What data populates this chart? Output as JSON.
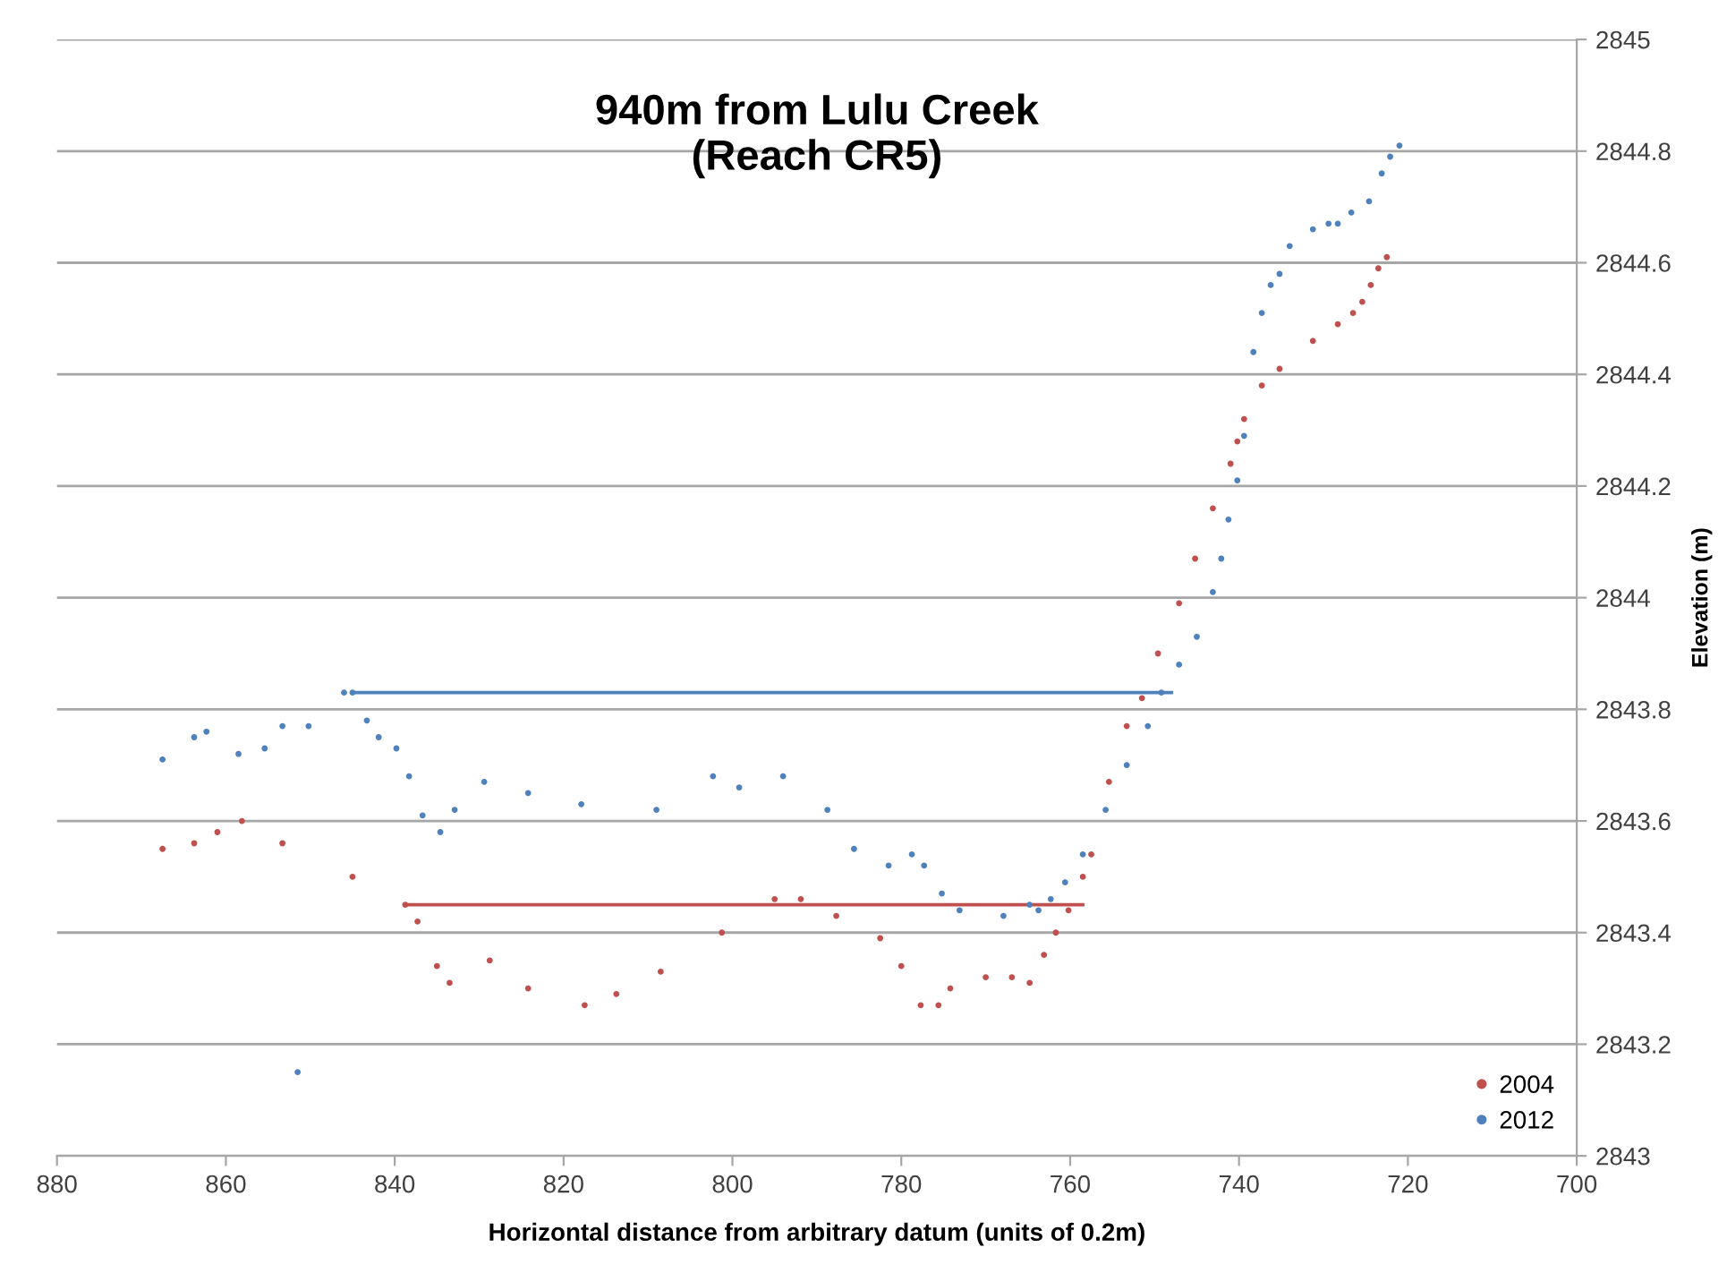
{
  "chart_data": {
    "type": "scatter",
    "title": "940m from Lulu Creek\n(Reach CR5)",
    "xlabel": "Horizontal distance from arbitrary datum (units of 0.2m)",
    "ylabel": "Elevation (m)",
    "xlim": [
      880,
      700
    ],
    "xticks": [
      880,
      860,
      840,
      820,
      800,
      780,
      760,
      740,
      720,
      700
    ],
    "ylim": [
      2843,
      2845
    ],
    "yticks": [
      2843,
      2843.2,
      2843.4,
      2843.6,
      2843.8,
      2844,
      2844.2,
      2844.4,
      2844.6,
      2844.8,
      2845
    ],
    "grid": "y",
    "legend": "bottom right",
    "series": [
      {
        "name": "2004",
        "color": "#c0504d",
        "marker": "circle",
        "x": [
          867.5,
          863.75,
          861,
          858.1,
          853.3,
          845,
          838.75,
          837.3,
          835,
          833.5,
          828.75,
          824.2,
          817.5,
          813.75,
          808.5,
          801.25,
          795,
          791.9,
          787.7,
          782.5,
          780,
          777.7,
          775.6,
          774.2,
          770,
          766.9,
          764.8,
          763.1,
          761.7,
          760.2,
          758.5,
          757.5,
          755.4,
          753.3,
          751.5,
          749.6,
          747.1,
          745.2,
          743.1,
          741,
          740.2,
          739.4,
          737.3,
          735.2,
          731.25,
          728.3,
          726.5,
          725.4,
          724.4,
          723.5,
          722.5
        ],
        "values": [
          2843.55,
          2843.56,
          2843.58,
          2843.6,
          2843.56,
          2843.5,
          2843.45,
          2843.42,
          2843.34,
          2843.31,
          2843.35,
          2843.3,
          2843.27,
          2843.29,
          2843.33,
          2843.4,
          2843.46,
          2843.46,
          2843.43,
          2843.39,
          2843.34,
          2843.27,
          2843.27,
          2843.3,
          2843.32,
          2843.32,
          2843.31,
          2843.36,
          2843.4,
          2843.44,
          2843.5,
          2843.54,
          2843.67,
          2843.77,
          2843.82,
          2843.9,
          2843.99,
          2844.07,
          2844.16,
          2844.24,
          2844.28,
          2844.32,
          2844.38,
          2844.41,
          2844.46,
          2844.49,
          2844.51,
          2844.53,
          2844.56,
          2844.59,
          2844.61
        ]
      },
      {
        "name": "2012",
        "color": "#4f81bd",
        "marker": "circle",
        "x": [
          867.5,
          863.75,
          862.3,
          858.5,
          855.4,
          853.3,
          851.5,
          850.2,
          846,
          845,
          843.3,
          841.9,
          839.8,
          838.3,
          836.7,
          834.6,
          832.9,
          829.4,
          824.2,
          817.9,
          809,
          802.3,
          799.2,
          794,
          788.75,
          785.6,
          781.5,
          778.75,
          777.3,
          775.2,
          773.1,
          767.9,
          764.8,
          763.75,
          762.3,
          760.6,
          758.5,
          755.8,
          753.3,
          750.8,
          749.2,
          747.1,
          745,
          743.1,
          742.1,
          741.25,
          740.2,
          739.4,
          738.3,
          737.3,
          736.25,
          735.2,
          734,
          731.25,
          729.4,
          728.3,
          726.7,
          724.6,
          723.1,
          722.1,
          721
        ],
        "values": [
          2843.71,
          2843.75,
          2843.76,
          2843.72,
          2843.73,
          2843.77,
          2843.15,
          2843.77,
          2843.83,
          2843.83,
          2843.78,
          2843.75,
          2843.73,
          2843.68,
          2843.61,
          2843.58,
          2843.62,
          2843.67,
          2843.65,
          2843.63,
          2843.62,
          2843.68,
          2843.66,
          2843.68,
          2843.62,
          2843.55,
          2843.52,
          2843.54,
          2843.52,
          2843.47,
          2843.44,
          2843.43,
          2843.45,
          2843.44,
          2843.46,
          2843.49,
          2843.54,
          2843.62,
          2843.7,
          2843.77,
          2843.83,
          2843.88,
          2843.93,
          2844.01,
          2844.07,
          2844.14,
          2844.21,
          2844.29,
          2844.44,
          2844.51,
          2844.56,
          2844.58,
          2844.63,
          2844.66,
          2844.67,
          2844.67,
          2844.69,
          2844.71,
          2844.76,
          2844.79,
          2844.81
        ]
      },
      {
        "color": "#c0504d",
        "type": "line",
        "marker": "none",
        "x": [
          838.75,
          758.5
        ],
        "values": [
          2843.45,
          2843.45
        ]
      },
      {
        "color": "#4f81bd",
        "type": "line",
        "marker": "none",
        "x": [
          845,
          748
        ],
        "values": [
          2843.83,
          2843.83
        ]
      }
    ]
  }
}
